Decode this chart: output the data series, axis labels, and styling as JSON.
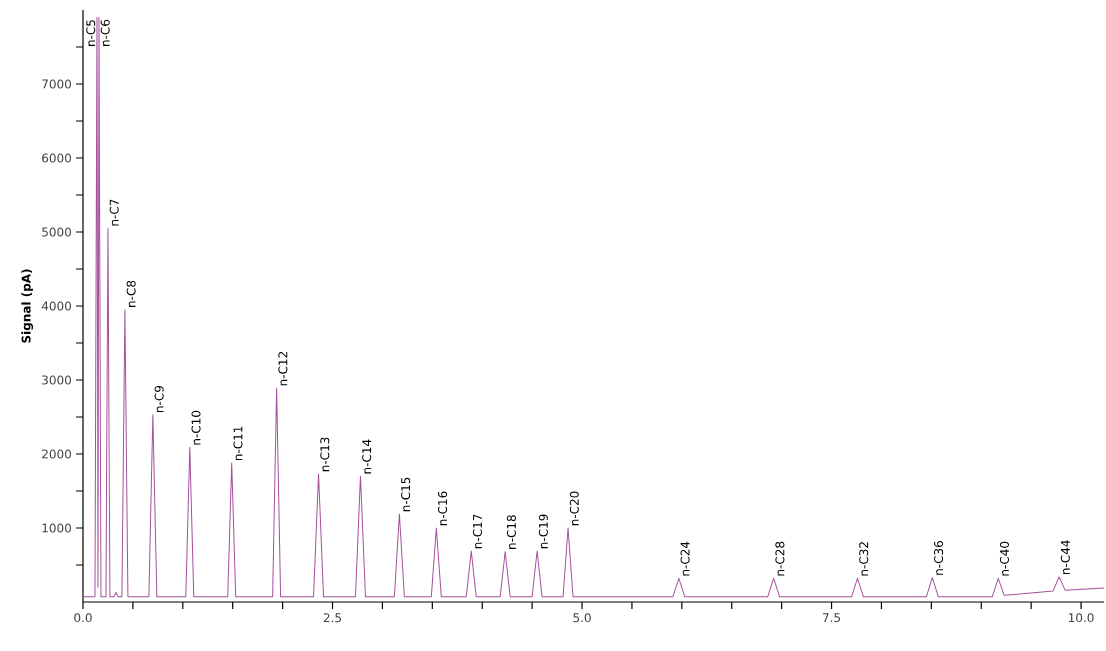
{
  "chart_data": {
    "type": "line",
    "ylabel": "Signal (pA)",
    "xlim": [
      0,
      10.23
    ],
    "ylim": [
      0,
      8000
    ],
    "xticks": [
      {
        "value": 0,
        "label": "0.0"
      },
      {
        "value": 0.5,
        "label": null
      },
      {
        "value": 1,
        "label": null
      },
      {
        "value": 1.5,
        "label": null
      },
      {
        "value": 2,
        "label": null
      },
      {
        "value": 2.5,
        "label": "2.5"
      },
      {
        "value": 3,
        "label": null
      },
      {
        "value": 3.5,
        "label": null
      },
      {
        "value": 4,
        "label": null
      },
      {
        "value": 4.5,
        "label": null
      },
      {
        "value": 5,
        "label": "5.0"
      },
      {
        "value": 5.5,
        "label": null
      },
      {
        "value": 6,
        "label": null
      },
      {
        "value": 6.5,
        "label": null
      },
      {
        "value": 7,
        "label": null
      },
      {
        "value": 7.5,
        "label": "7.5"
      },
      {
        "value": 8,
        "label": null
      },
      {
        "value": 8.5,
        "label": null
      },
      {
        "value": 9,
        "label": null
      },
      {
        "value": 9.5,
        "label": null
      },
      {
        "value": 10,
        "label": "10.0"
      }
    ],
    "yticks": [
      {
        "value": 500,
        "label": null
      },
      1000,
      {
        "value": 1500,
        "label": null
      },
      2000,
      {
        "value": 2500,
        "label": null
      },
      3000,
      {
        "value": 3500,
        "label": null
      },
      4000,
      {
        "value": 4500,
        "label": null
      },
      5000,
      {
        "value": 5500,
        "label": null
      },
      6000,
      {
        "value": 6500,
        "label": null
      },
      7000,
      {
        "value": 7500,
        "label": null
      }
    ],
    "marker": "none",
    "line_style": "solid",
    "series": [
      {
        "color": "#a4509c",
        "x": [
          0,
          0.12,
          0.14,
          0.15,
          0.16,
          0.18,
          0.23,
          0.25,
          0.27,
          0.31,
          0.33,
          0.35,
          0.39,
          0.42,
          0.45,
          0.66,
          0.7,
          0.74,
          1.03,
          1.07,
          1.11,
          1.45,
          1.49,
          1.53,
          1.9,
          1.94,
          1.98,
          2.31,
          2.36,
          2.41,
          2.73,
          2.78,
          2.83,
          3.12,
          3.17,
          3.22,
          3.49,
          3.54,
          3.59,
          3.84,
          3.89,
          3.94,
          4.18,
          4.23,
          4.28,
          4.5,
          4.55,
          4.6,
          4.81,
          4.86,
          4.91,
          5.91,
          5.97,
          6.03,
          6.86,
          6.92,
          6.98,
          7.7,
          7.76,
          7.82,
          8.45,
          8.51,
          8.57,
          9.11,
          9.17,
          9.23,
          9.5,
          9.72,
          9.78,
          9.84,
          10.23
        ],
        "values": [
          70,
          70,
          7900,
          200,
          7900,
          70,
          70,
          5050,
          70,
          70,
          130,
          70,
          70,
          3950,
          70,
          70,
          2530,
          70,
          70,
          2090,
          70,
          70,
          1880,
          70,
          70,
          2890,
          70,
          70,
          1730,
          70,
          70,
          1700,
          70,
          70,
          1190,
          70,
          70,
          1000,
          70,
          70,
          690,
          70,
          70,
          680,
          70,
          70,
          690,
          70,
          70,
          1000,
          70,
          70,
          320,
          70,
          70,
          320,
          70,
          70,
          320,
          70,
          70,
          330,
          70,
          70,
          320,
          90,
          120,
          150,
          340,
          160,
          190
        ]
      }
    ],
    "annotations": [
      {
        "text": "n-C5",
        "x": 0.14,
        "y": 7900
      },
      {
        "text": "n-C6",
        "x": 0.16,
        "y": 7900
      },
      {
        "text": "n-C7",
        "x": 0.25,
        "y": 5050
      },
      {
        "text": "n-C8",
        "x": 0.42,
        "y": 3950
      },
      {
        "text": "n-C9",
        "x": 0.7,
        "y": 2530
      },
      {
        "text": "n-C10",
        "x": 1.07,
        "y": 2090
      },
      {
        "text": "n-C11",
        "x": 1.49,
        "y": 1880
      },
      {
        "text": "n-C12",
        "x": 1.94,
        "y": 2890
      },
      {
        "text": "n-C13",
        "x": 2.36,
        "y": 1730
      },
      {
        "text": "n-C14",
        "x": 2.78,
        "y": 1700
      },
      {
        "text": "n-C15",
        "x": 3.17,
        "y": 1190
      },
      {
        "text": "n-C16",
        "x": 3.54,
        "y": 1000
      },
      {
        "text": "n-C17",
        "x": 3.89,
        "y": 690
      },
      {
        "text": "n-C18",
        "x": 4.23,
        "y": 680
      },
      {
        "text": "n-C19",
        "x": 4.55,
        "y": 690
      },
      {
        "text": "n-C20",
        "x": 4.86,
        "y": 1000
      },
      {
        "text": "n-C24",
        "x": 5.97,
        "y": 320
      },
      {
        "text": "n-C28",
        "x": 6.92,
        "y": 320
      },
      {
        "text": "n-C32",
        "x": 7.76,
        "y": 320
      },
      {
        "text": "n-C36",
        "x": 8.51,
        "y": 330
      },
      {
        "text": "n-C40",
        "x": 9.17,
        "y": 320
      },
      {
        "text": "n-C44",
        "x": 9.78,
        "y": 340
      }
    ]
  }
}
